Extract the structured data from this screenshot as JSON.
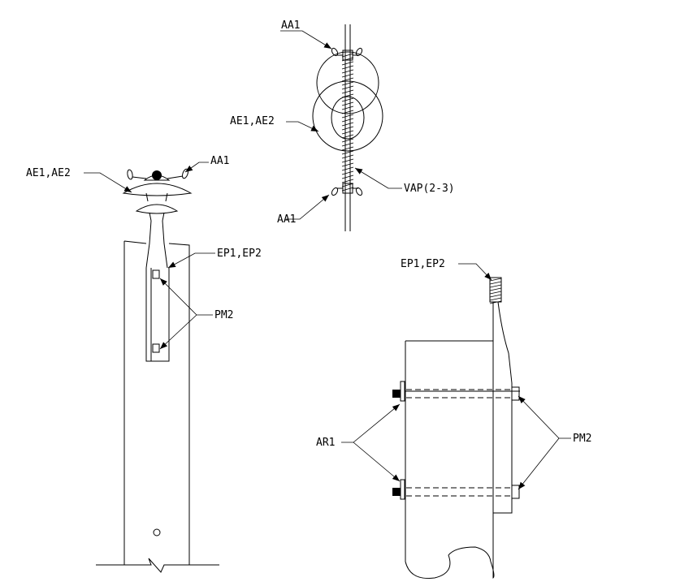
{
  "labels": {
    "aa1_top": "AA1",
    "ae1_ae2_top": "AE1,AE2",
    "vap": "VAP(2-3)",
    "aa1_bottom": "AA1",
    "ae1_ae2_left": "AE1,AE2",
    "aa1_left": "AA1",
    "ep1_ep2_left": "EP1,EP2",
    "pm2_left": "PM2",
    "ep1_ep2_right": "EP1,EP2",
    "ar1": "AR1",
    "pm2_right": "PM2"
  },
  "colors": {
    "line": "#000000",
    "background": "#ffffff"
  }
}
